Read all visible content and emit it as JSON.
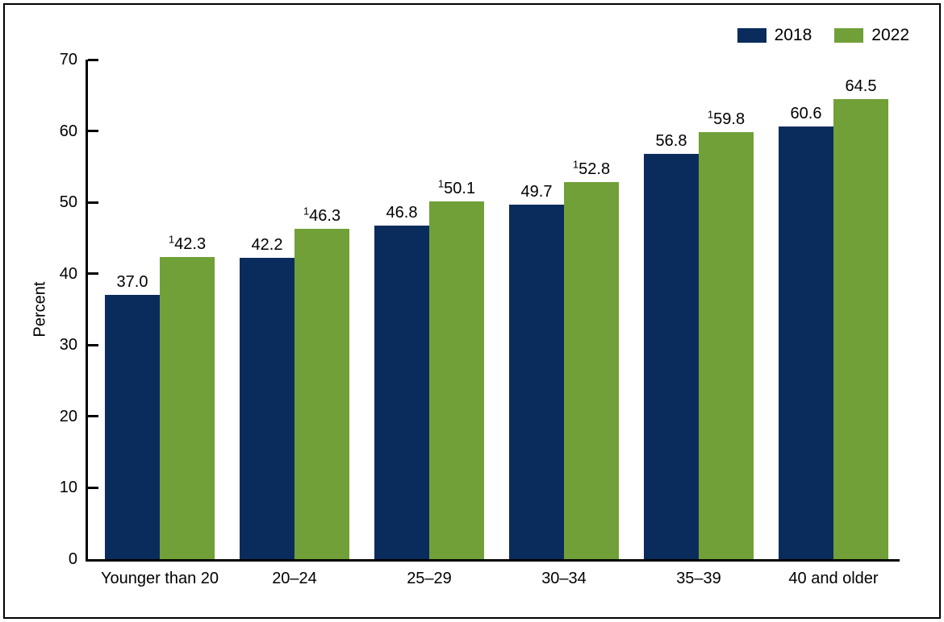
{
  "chart_data": {
    "type": "bar",
    "title": "",
    "xlabel": "",
    "ylabel": "Percent",
    "ylim": [
      0,
      70
    ],
    "yticks": [
      0,
      10,
      20,
      30,
      40,
      50,
      60,
      70
    ],
    "grid": false,
    "legend_position": "top-right",
    "axis_color": "#000000",
    "text_color": "#000000",
    "categories": [
      "Younger than 20",
      "20–24",
      "25–29",
      "30–34",
      "35–39",
      "40 and older"
    ],
    "series": [
      {
        "name": "2018",
        "color": "#0a2c5c",
        "values": [
          37.0,
          42.2,
          46.8,
          49.7,
          56.8,
          60.6
        ],
        "data_labels": [
          "37.0",
          "42.2",
          "46.8",
          "49.7",
          "56.8",
          "60.6"
        ],
        "label_superscripts": [
          "",
          "",
          "",
          "",
          "",
          ""
        ]
      },
      {
        "name": "2022",
        "color": "#70a037",
        "values": [
          42.3,
          46.3,
          50.1,
          52.8,
          59.8,
          64.5
        ],
        "data_labels": [
          "42.3",
          "46.3",
          "50.1",
          "52.8",
          "59.8",
          "64.5"
        ],
        "label_superscripts": [
          "1",
          "1",
          "1",
          "1",
          "1",
          ""
        ]
      }
    ]
  }
}
